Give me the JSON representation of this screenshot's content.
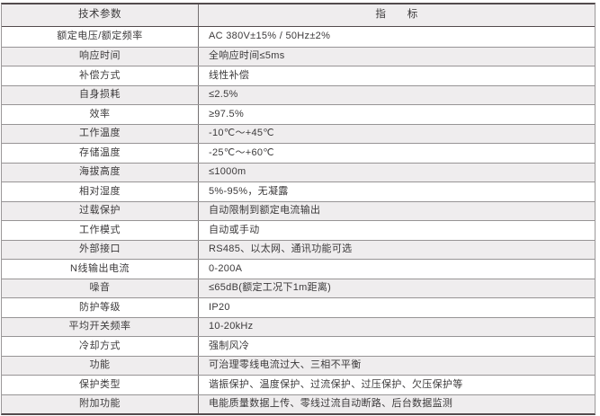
{
  "table": {
    "header": {
      "param": "技术参数",
      "value": "指　　标"
    },
    "rows": [
      {
        "param": "额定电压/额定频率",
        "value": "AC 380V±15% / 50Hz±2%"
      },
      {
        "param": "响应时间",
        "value": "全响应时间≤5ms"
      },
      {
        "param": "补偿方式",
        "value": "线性补偿"
      },
      {
        "param": "自身损耗",
        "value": "≤2.5%"
      },
      {
        "param": "效率",
        "value": "≥97.5%"
      },
      {
        "param": "工作温度",
        "value": "-10℃～+45℃"
      },
      {
        "param": "存储温度",
        "value": "-25℃～+60℃"
      },
      {
        "param": "海拔高度",
        "value": "≤1000m"
      },
      {
        "param": "相对湿度",
        "value": "5%-95%，无凝露"
      },
      {
        "param": "过载保护",
        "value": "自动限制到额定电流输出"
      },
      {
        "param": "工作模式",
        "value": "自动或手动"
      },
      {
        "param": "外部接口",
        "value": "RS485、以太网、通讯功能可选"
      },
      {
        "param": "N线输出电流",
        "value": "0-200A"
      },
      {
        "param": "噪音",
        "value": "≤65dB(额定工况下1m距离)"
      },
      {
        "param": "防护等级",
        "value": "IP20"
      },
      {
        "param": "平均开关频率",
        "value": "10-20kHz"
      },
      {
        "param": "冷却方式",
        "value": "强制风冷"
      },
      {
        "param": "功能",
        "value": "可治理零线电流过大、三相不平衡"
      },
      {
        "param": "保护类型",
        "value": "谐振保护、温度保护、过流保护、过压保护、欠压保护等"
      },
      {
        "param": "附加功能",
        "value": "电能质量数据上传、零线过流自动断路、后台数据监测"
      }
    ]
  },
  "colors": {
    "stripe_background": "#efedee",
    "border_dark": "#534b4d",
    "border_light": "#979495",
    "column_divider": "#747071",
    "text": "#3c3a3b"
  }
}
